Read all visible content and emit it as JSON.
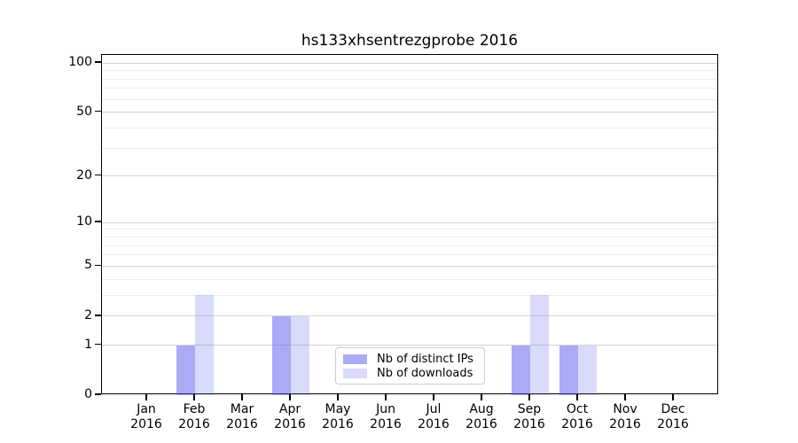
{
  "title": "hs133xhsentrezgprobe 2016",
  "chart_data": {
    "type": "bar",
    "title": "hs133xhsentrezgprobe 2016",
    "categories": [
      "Jan",
      "Feb",
      "Mar",
      "Apr",
      "May",
      "Jun",
      "Jul",
      "Aug",
      "Sep",
      "Oct",
      "Nov",
      "Dec"
    ],
    "category_year": "2016",
    "series": [
      {
        "name": "Nb of distinct IPs",
        "color": "rgba(85,85,238,0.5)",
        "values": [
          0,
          1,
          0,
          2,
          0,
          0,
          0,
          0,
          1,
          1,
          0,
          0
        ]
      },
      {
        "name": "Nb of downloads",
        "color": "rgba(85,85,238,0.22)",
        "values": [
          0,
          3,
          0,
          2,
          0,
          0,
          0,
          0,
          3,
          1,
          0,
          0
        ]
      }
    ],
    "y_axis": {
      "scale": "log1p",
      "major_ticks": [
        0,
        1,
        2,
        5,
        10,
        20,
        50,
        100
      ],
      "minor_gridlines": [
        3,
        4,
        6,
        7,
        8,
        9,
        30,
        40,
        60,
        70,
        80,
        90
      ],
      "axis_max": 112
    },
    "x_axis": {
      "tick_years": "2016"
    },
    "legend": {
      "position": "lower center"
    },
    "grid": true,
    "colors": {
      "axis": "#000000",
      "major_grid": "#d2d2d2",
      "minor_grid": "#ededed"
    }
  }
}
